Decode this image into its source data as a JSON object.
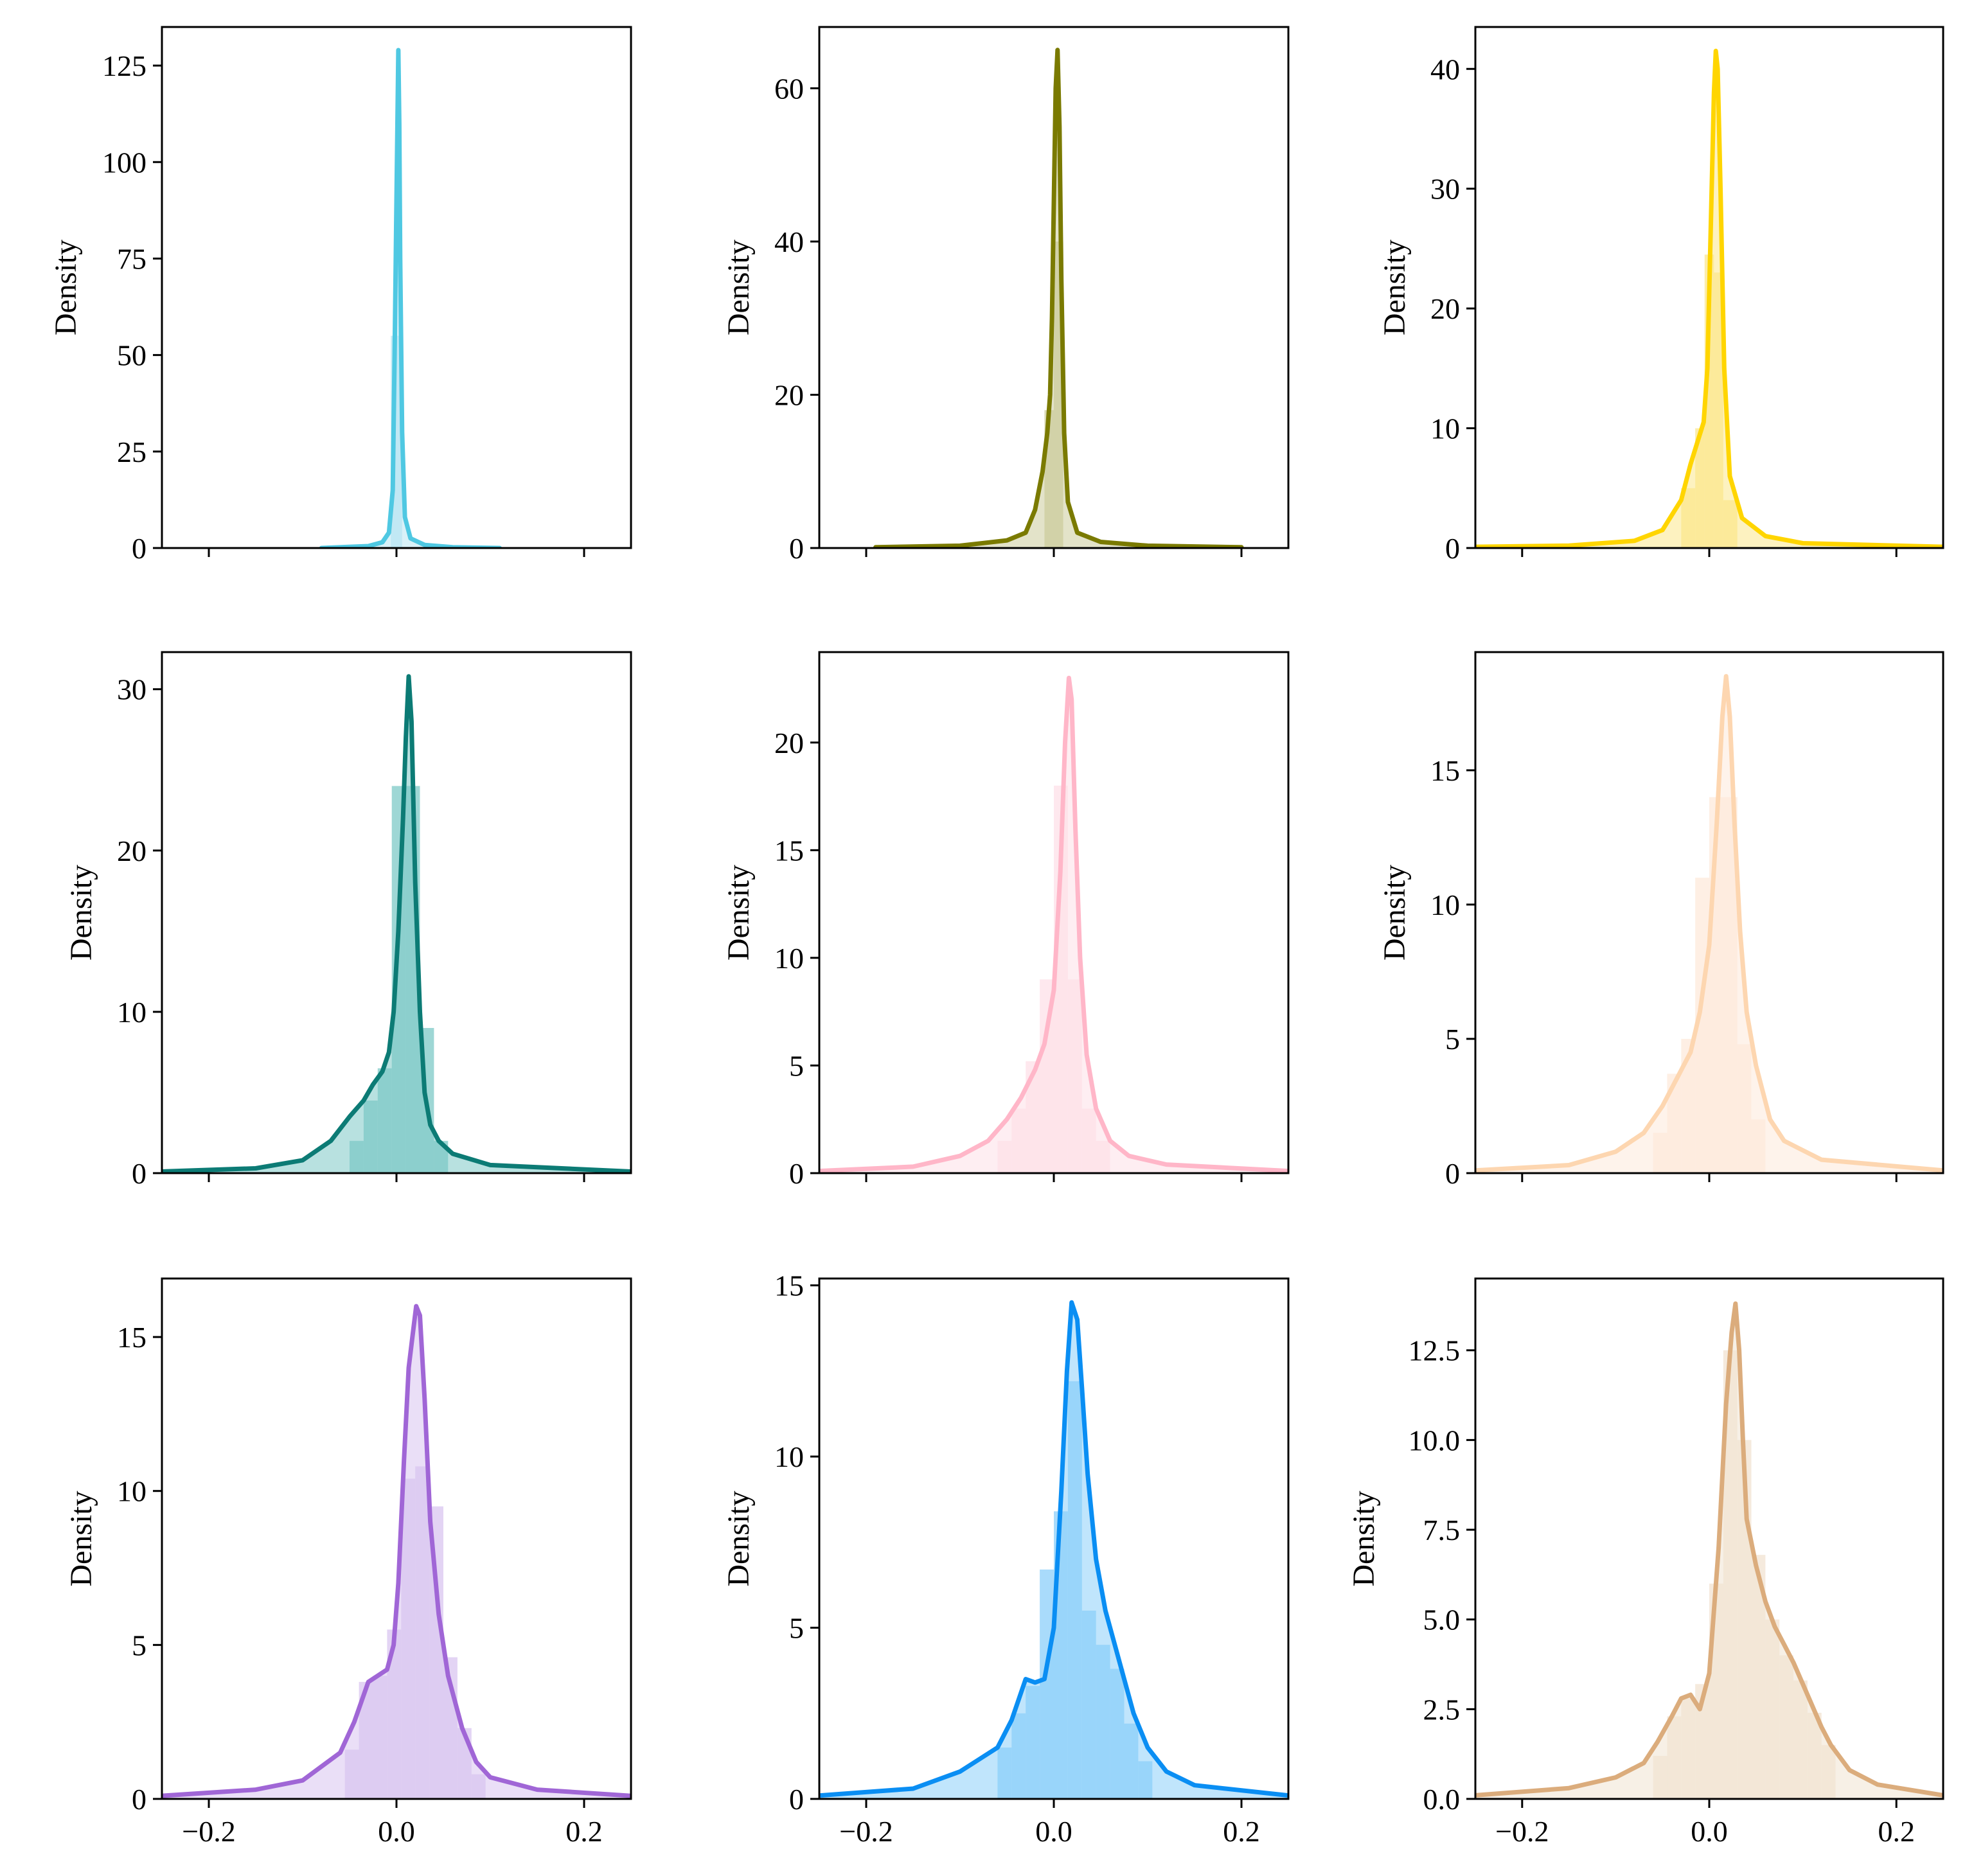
{
  "chart_data": [
    {
      "type": "histogram+kde",
      "ylabel": "Density",
      "color": "#4fc8e2",
      "fill": "#b9e6f2",
      "xlim": [
        -0.25,
        0.25
      ],
      "ylim": [
        0,
        135
      ],
      "yticks": [
        0,
        25,
        50,
        75,
        100,
        125
      ],
      "ytick_labels": [
        "0",
        "25",
        "50",
        "75",
        "100",
        "125"
      ],
      "xticks": [
        -0.2,
        0.0,
        0.2
      ],
      "xtick_labels": [],
      "kde": [
        [
          -0.08,
          0
        ],
        [
          -0.03,
          0.5
        ],
        [
          -0.015,
          1.5
        ],
        [
          -0.008,
          4
        ],
        [
          -0.004,
          15
        ],
        [
          -0.002,
          50
        ],
        [
          0.0,
          90
        ],
        [
          0.001,
          110
        ],
        [
          0.002,
          129
        ],
        [
          0.003,
          110
        ],
        [
          0.004,
          75
        ],
        [
          0.006,
          30
        ],
        [
          0.009,
          8
        ],
        [
          0.015,
          2.5
        ],
        [
          0.03,
          0.8
        ],
        [
          0.06,
          0.2
        ],
        [
          0.11,
          0
        ]
      ],
      "bins": [
        [
          -0.006,
          0.006,
          55
        ]
      ]
    },
    {
      "type": "histogram+kde",
      "ylabel": "Density",
      "color": "#7a7a00",
      "fill": "#cccc9c",
      "xlim": [
        -0.25,
        0.25
      ],
      "ylim": [
        0,
        68
      ],
      "yticks": [
        0,
        20,
        40,
        60
      ],
      "ytick_labels": [
        "0",
        "20",
        "40",
        "60"
      ],
      "xticks": [
        -0.2,
        0.0,
        0.2
      ],
      "xtick_labels": [],
      "kde": [
        [
          -0.19,
          0.1
        ],
        [
          -0.1,
          0.3
        ],
        [
          -0.05,
          1
        ],
        [
          -0.03,
          2
        ],
        [
          -0.02,
          5
        ],
        [
          -0.012,
          10
        ],
        [
          -0.007,
          15
        ],
        [
          -0.004,
          20
        ],
        [
          -0.002,
          30
        ],
        [
          0.0,
          45
        ],
        [
          0.002,
          60
        ],
        [
          0.004,
          65
        ],
        [
          0.006,
          55
        ],
        [
          0.008,
          35
        ],
        [
          0.011,
          15
        ],
        [
          0.015,
          6
        ],
        [
          0.025,
          2
        ],
        [
          0.05,
          0.8
        ],
        [
          0.1,
          0.3
        ],
        [
          0.2,
          0.1
        ]
      ],
      "bins": [
        [
          -0.01,
          0.0,
          18
        ],
        [
          0.0,
          0.01,
          40
        ]
      ]
    },
    {
      "type": "histogram+kde",
      "ylabel": "Density",
      "color": "#ffd500",
      "fill": "#fbe78d",
      "xlim": [
        -0.25,
        0.25
      ],
      "ylim": [
        0,
        43.5
      ],
      "yticks": [
        0,
        10,
        20,
        30,
        40
      ],
      "ytick_labels": [
        "0",
        "10",
        "20",
        "30",
        "40"
      ],
      "xticks": [
        -0.2,
        0.0,
        0.2
      ],
      "xtick_labels": [],
      "kde": [
        [
          -0.25,
          0.1
        ],
        [
          -0.15,
          0.2
        ],
        [
          -0.08,
          0.6
        ],
        [
          -0.05,
          1.5
        ],
        [
          -0.03,
          4
        ],
        [
          -0.02,
          7
        ],
        [
          -0.012,
          9
        ],
        [
          -0.006,
          10.5
        ],
        [
          -0.002,
          15
        ],
        [
          0.002,
          28
        ],
        [
          0.005,
          38
        ],
        [
          0.007,
          41.5
        ],
        [
          0.009,
          40
        ],
        [
          0.012,
          30
        ],
        [
          0.016,
          15
        ],
        [
          0.022,
          6
        ],
        [
          0.035,
          2.5
        ],
        [
          0.06,
          1
        ],
        [
          0.1,
          0.4
        ],
        [
          0.25,
          0.1
        ]
      ],
      "bins": [
        [
          -0.03,
          -0.015,
          5
        ],
        [
          -0.015,
          -0.005,
          10
        ],
        [
          -0.005,
          0.005,
          24.5
        ],
        [
          0.005,
          0.015,
          23
        ],
        [
          0.015,
          0.03,
          4
        ]
      ]
    },
    {
      "type": "histogram+kde",
      "ylabel": "Density",
      "color": "#0c7b75",
      "fill": "#7ec9c7",
      "xlim": [
        -0.25,
        0.25
      ],
      "ylim": [
        0,
        32.3
      ],
      "yticks": [
        0,
        10,
        20,
        30
      ],
      "ytick_labels": [
        "0",
        "10",
        "20",
        "30"
      ],
      "xticks": [
        -0.2,
        0.0,
        0.2
      ],
      "xtick_labels": [],
      "kde": [
        [
          -0.25,
          0.1
        ],
        [
          -0.15,
          0.3
        ],
        [
          -0.1,
          0.8
        ],
        [
          -0.07,
          2
        ],
        [
          -0.05,
          3.5
        ],
        [
          -0.035,
          4.5
        ],
        [
          -0.025,
          5.5
        ],
        [
          -0.015,
          6.3
        ],
        [
          -0.008,
          7.5
        ],
        [
          -0.003,
          10
        ],
        [
          0.002,
          15
        ],
        [
          0.007,
          22
        ],
        [
          0.01,
          27
        ],
        [
          0.013,
          30.8
        ],
        [
          0.016,
          28
        ],
        [
          0.02,
          18
        ],
        [
          0.025,
          10
        ],
        [
          0.03,
          5
        ],
        [
          0.036,
          3
        ],
        [
          0.045,
          2
        ],
        [
          0.06,
          1.2
        ],
        [
          0.1,
          0.5
        ],
        [
          0.25,
          0.1
        ]
      ],
      "bins": [
        [
          -0.05,
          -0.035,
          2
        ],
        [
          -0.035,
          -0.02,
          4.5
        ],
        [
          -0.02,
          -0.005,
          6.5
        ],
        [
          -0.005,
          0.01,
          24
        ],
        [
          0.01,
          0.025,
          24
        ],
        [
          0.025,
          0.04,
          9
        ],
        [
          0.04,
          0.055,
          2
        ]
      ]
    },
    {
      "type": "histogram+kde",
      "ylabel": "Density",
      "color": "#ffb6c8",
      "fill": "#fde0e8",
      "xlim": [
        -0.25,
        0.25
      ],
      "ylim": [
        0,
        24.2
      ],
      "yticks": [
        0,
        5,
        10,
        15,
        20
      ],
      "ytick_labels": [
        "0",
        "5",
        "10",
        "15",
        "20"
      ],
      "xticks": [
        -0.2,
        0.0,
        0.2
      ],
      "xtick_labels": [],
      "kde": [
        [
          -0.25,
          0.1
        ],
        [
          -0.15,
          0.3
        ],
        [
          -0.1,
          0.8
        ],
        [
          -0.07,
          1.5
        ],
        [
          -0.05,
          2.5
        ],
        [
          -0.035,
          3.5
        ],
        [
          -0.02,
          4.8
        ],
        [
          -0.01,
          6
        ],
        [
          0.0,
          8.5
        ],
        [
          0.007,
          14
        ],
        [
          0.012,
          20
        ],
        [
          0.016,
          23
        ],
        [
          0.019,
          22
        ],
        [
          0.023,
          16
        ],
        [
          0.028,
          10
        ],
        [
          0.035,
          5.5
        ],
        [
          0.045,
          3
        ],
        [
          0.06,
          1.5
        ],
        [
          0.08,
          0.8
        ],
        [
          0.12,
          0.4
        ],
        [
          0.25,
          0.1
        ]
      ],
      "bins": [
        [
          -0.06,
          -0.045,
          1.5
        ],
        [
          -0.045,
          -0.03,
          3
        ],
        [
          -0.03,
          -0.015,
          5.2
        ],
        [
          -0.015,
          0.0,
          9
        ],
        [
          0.0,
          0.015,
          18
        ],
        [
          0.015,
          0.03,
          9
        ],
        [
          0.03,
          0.045,
          3
        ],
        [
          0.045,
          0.06,
          1.5
        ]
      ]
    },
    {
      "type": "histogram+kde",
      "ylabel": "Density",
      "color": "#fdd6b0",
      "fill": "#fdeadb",
      "xlim": [
        -0.25,
        0.25
      ],
      "ylim": [
        0,
        19.4
      ],
      "yticks": [
        0,
        5,
        10,
        15
      ],
      "ytick_labels": [
        "0",
        "5",
        "10",
        "15"
      ],
      "xticks": [
        -0.2,
        0.0,
        0.2
      ],
      "xtick_labels": [],
      "kde": [
        [
          -0.25,
          0.1
        ],
        [
          -0.15,
          0.3
        ],
        [
          -0.1,
          0.8
        ],
        [
          -0.07,
          1.5
        ],
        [
          -0.05,
          2.5
        ],
        [
          -0.035,
          3.5
        ],
        [
          -0.02,
          4.5
        ],
        [
          -0.01,
          6
        ],
        [
          0.0,
          8.5
        ],
        [
          0.008,
          13
        ],
        [
          0.014,
          17
        ],
        [
          0.018,
          18.5
        ],
        [
          0.022,
          17
        ],
        [
          0.027,
          13
        ],
        [
          0.033,
          9
        ],
        [
          0.04,
          6
        ],
        [
          0.05,
          4
        ],
        [
          0.065,
          2
        ],
        [
          0.08,
          1.2
        ],
        [
          0.12,
          0.5
        ],
        [
          0.25,
          0.1
        ]
      ],
      "bins": [
        [
          -0.06,
          -0.045,
          1.5
        ],
        [
          -0.045,
          -0.03,
          3.7
        ],
        [
          -0.03,
          -0.015,
          5
        ],
        [
          -0.015,
          0.0,
          11
        ],
        [
          0.0,
          0.015,
          14
        ],
        [
          0.015,
          0.03,
          14
        ],
        [
          0.03,
          0.045,
          4.8
        ],
        [
          0.045,
          0.06,
          2
        ]
      ]
    },
    {
      "type": "histogram+kde",
      "ylabel": "Density",
      "color": "#a066d6",
      "fill": "#d9c5f0",
      "xlim": [
        -0.25,
        0.25
      ],
      "ylim": [
        0,
        16.9
      ],
      "yticks": [
        0,
        5,
        10,
        15
      ],
      "ytick_labels": [
        "0",
        "5",
        "10",
        "15"
      ],
      "xticks": [
        -0.2,
        0.0,
        0.2
      ],
      "xtick_labels": [
        "−0.2",
        "0.0",
        "0.2"
      ],
      "kde": [
        [
          -0.25,
          0.1
        ],
        [
          -0.15,
          0.3
        ],
        [
          -0.1,
          0.6
        ],
        [
          -0.06,
          1.5
        ],
        [
          -0.045,
          2.5
        ],
        [
          -0.03,
          3.8
        ],
        [
          -0.02,
          4
        ],
        [
          -0.01,
          4.2
        ],
        [
          -0.003,
          5
        ],
        [
          0.002,
          7
        ],
        [
          0.008,
          11
        ],
        [
          0.013,
          14
        ],
        [
          0.017,
          15
        ],
        [
          0.021,
          16
        ],
        [
          0.025,
          15.7
        ],
        [
          0.03,
          13
        ],
        [
          0.036,
          9
        ],
        [
          0.045,
          6
        ],
        [
          0.055,
          4
        ],
        [
          0.07,
          2.3
        ],
        [
          0.085,
          1.2
        ],
        [
          0.1,
          0.7
        ],
        [
          0.15,
          0.3
        ],
        [
          0.25,
          0.1
        ]
      ],
      "bins": [
        [
          -0.055,
          -0.04,
          1.6
        ],
        [
          -0.04,
          -0.025,
          3.8
        ],
        [
          -0.025,
          -0.01,
          4
        ],
        [
          -0.01,
          0.005,
          5.5
        ],
        [
          0.005,
          0.02,
          10.4
        ],
        [
          0.02,
          0.035,
          10.8
        ],
        [
          0.035,
          0.05,
          9.5
        ],
        [
          0.05,
          0.065,
          4.6
        ],
        [
          0.065,
          0.08,
          2.3
        ],
        [
          0.08,
          0.095,
          0.8
        ]
      ]
    },
    {
      "type": "histogram+kde",
      "ylabel": "Density",
      "color": "#0a8ef3",
      "fill": "#8ccff9",
      "xlim": [
        -0.25,
        0.25
      ],
      "ylim": [
        0,
        15.2
      ],
      "yticks": [
        0,
        5,
        10,
        15
      ],
      "ytick_labels": [
        "0",
        "5",
        "10",
        "15"
      ],
      "xticks": [
        -0.2,
        0.0,
        0.2
      ],
      "xtick_labels": [
        "−0.2",
        "0.0",
        "0.2"
      ],
      "kde": [
        [
          -0.25,
          0.1
        ],
        [
          -0.15,
          0.3
        ],
        [
          -0.1,
          0.8
        ],
        [
          -0.06,
          1.5
        ],
        [
          -0.045,
          2.3
        ],
        [
          -0.03,
          3.5
        ],
        [
          -0.02,
          3.4
        ],
        [
          -0.01,
          3.5
        ],
        [
          0.0,
          5
        ],
        [
          0.008,
          9
        ],
        [
          0.014,
          12.5
        ],
        [
          0.019,
          14.5
        ],
        [
          0.025,
          14
        ],
        [
          0.03,
          12
        ],
        [
          0.036,
          9.5
        ],
        [
          0.045,
          7
        ],
        [
          0.055,
          5.5
        ],
        [
          0.065,
          4.5
        ],
        [
          0.075,
          3.5
        ],
        [
          0.085,
          2.5
        ],
        [
          0.1,
          1.5
        ],
        [
          0.12,
          0.8
        ],
        [
          0.15,
          0.4
        ],
        [
          0.25,
          0.1
        ]
      ],
      "bins": [
        [
          -0.06,
          -0.045,
          1.5
        ],
        [
          -0.045,
          -0.03,
          2.5
        ],
        [
          -0.03,
          -0.015,
          3.3
        ],
        [
          -0.015,
          0.0,
          6.7
        ],
        [
          0.0,
          0.015,
          8.4
        ],
        [
          0.015,
          0.03,
          12.2
        ],
        [
          0.03,
          0.045,
          5.5
        ],
        [
          0.045,
          0.06,
          4.5
        ],
        [
          0.06,
          0.075,
          3.8
        ],
        [
          0.075,
          0.09,
          2.2
        ],
        [
          0.09,
          0.105,
          1.1
        ]
      ]
    },
    {
      "type": "histogram+kde",
      "ylabel": "Density",
      "color": "#dbac7c",
      "fill": "#f1e3d1",
      "xlim": [
        -0.25,
        0.25
      ],
      "ylim": [
        0,
        14.5
      ],
      "yticks": [
        0,
        2.5,
        5.0,
        7.5,
        10.0,
        12.5
      ],
      "ytick_labels": [
        "0.0",
        "2.5",
        "5.0",
        "7.5",
        "10.0",
        "12.5"
      ],
      "xticks": [
        -0.2,
        0.0,
        0.2
      ],
      "xtick_labels": [
        "−0.2",
        "0.0",
        "0.2"
      ],
      "kde": [
        [
          -0.25,
          0.1
        ],
        [
          -0.15,
          0.3
        ],
        [
          -0.1,
          0.6
        ],
        [
          -0.07,
          1
        ],
        [
          -0.055,
          1.6
        ],
        [
          -0.04,
          2.3
        ],
        [
          -0.03,
          2.8
        ],
        [
          -0.02,
          2.9
        ],
        [
          -0.01,
          2.5
        ],
        [
          0.0,
          3.5
        ],
        [
          0.01,
          7
        ],
        [
          0.018,
          11
        ],
        [
          0.024,
          13
        ],
        [
          0.028,
          13.8
        ],
        [
          0.032,
          12.5
        ],
        [
          0.036,
          10
        ],
        [
          0.04,
          7.8
        ],
        [
          0.05,
          6.5
        ],
        [
          0.06,
          5.5
        ],
        [
          0.07,
          4.8
        ],
        [
          0.08,
          4.3
        ],
        [
          0.09,
          3.8
        ],
        [
          0.1,
          3.2
        ],
        [
          0.11,
          2.6
        ],
        [
          0.12,
          2
        ],
        [
          0.13,
          1.5
        ],
        [
          0.15,
          0.8
        ],
        [
          0.18,
          0.4
        ],
        [
          0.25,
          0.1
        ]
      ],
      "bins": [
        [
          -0.06,
          -0.045,
          1.2
        ],
        [
          -0.045,
          -0.03,
          2.3
        ],
        [
          -0.03,
          -0.015,
          2.8
        ],
        [
          -0.015,
          0.0,
          3.2
        ],
        [
          0.0,
          0.015,
          6
        ],
        [
          0.015,
          0.03,
          12.5
        ],
        [
          0.03,
          0.045,
          10
        ],
        [
          0.045,
          0.06,
          6.8
        ],
        [
          0.06,
          0.075,
          5
        ],
        [
          0.075,
          0.09,
          4
        ],
        [
          0.09,
          0.105,
          3.3
        ],
        [
          0.105,
          0.12,
          2.4
        ],
        [
          0.12,
          0.135,
          1.5
        ]
      ]
    }
  ]
}
